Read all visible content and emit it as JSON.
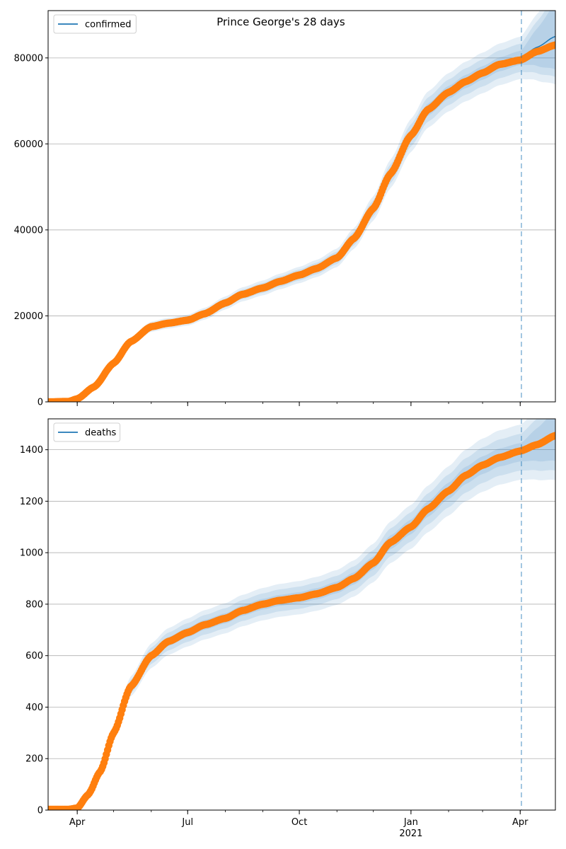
{
  "figure_title": "Prince George's 28 days",
  "chart_data": [
    {
      "type": "line",
      "title": "Prince George's 28 days",
      "xlabel": "",
      "ylabel": "",
      "x_axis": {
        "type": "date",
        "range": [
          "2020-03-08",
          "2021-04-30"
        ],
        "ticks": [
          {
            "date": "2020-04-01",
            "label": "Apr"
          },
          {
            "date": "2020-07-01",
            "label": "Jul"
          },
          {
            "date": "2020-10-01",
            "label": "Oct"
          },
          {
            "date": "2021-01-01",
            "label": "Jan",
            "sublabel": "2021"
          },
          {
            "date": "2021-04-01",
            "label": "Apr"
          }
        ]
      },
      "ylim": [
        0,
        91000
      ],
      "yticks": [
        0,
        20000,
        40000,
        60000,
        80000
      ],
      "grid": "y",
      "legend": {
        "position": "top-left",
        "entries": [
          "confirmed"
        ]
      },
      "forecast_start": "2021-04-02",
      "series": [
        {
          "name": "confirmed",
          "kind": "fitted-line",
          "color": "#1f77b4",
          "points": [
            [
              "2020-03-08",
              0
            ],
            [
              "2020-03-25",
              100
            ],
            [
              "2020-04-01",
              700
            ],
            [
              "2020-04-15",
              3500
            ],
            [
              "2020-05-01",
              9000
            ],
            [
              "2020-05-15",
              14000
            ],
            [
              "2020-06-01",
              17500
            ],
            [
              "2020-06-15",
              18300
            ],
            [
              "2020-07-01",
              19000
            ],
            [
              "2020-07-15",
              20500
            ],
            [
              "2020-08-01",
              23000
            ],
            [
              "2020-08-15",
              25000
            ],
            [
              "2020-09-01",
              26500
            ],
            [
              "2020-09-15",
              28000
            ],
            [
              "2020-10-01",
              29500
            ],
            [
              "2020-10-15",
              31000
            ],
            [
              "2020-11-01",
              33500
            ],
            [
              "2020-11-15",
              38000
            ],
            [
              "2020-12-01",
              45000
            ],
            [
              "2020-12-15",
              53000
            ],
            [
              "2021-01-01",
              62000
            ],
            [
              "2021-01-15",
              68000
            ],
            [
              "2021-02-01",
              72000
            ],
            [
              "2021-02-15",
              74500
            ],
            [
              "2021-03-01",
              76500
            ],
            [
              "2021-03-15",
              78500
            ],
            [
              "2021-04-01",
              80000
            ],
            [
              "2021-04-15",
              82500
            ],
            [
              "2021-04-30",
              85000
            ]
          ]
        },
        {
          "name": "",
          "kind": "observed",
          "color": "#ff7f0e",
          "points": [
            [
              "2020-03-08",
              0
            ],
            [
              "2020-03-25",
              100
            ],
            [
              "2020-04-01",
              700
            ],
            [
              "2020-04-15",
              3500
            ],
            [
              "2020-05-01",
              9000
            ],
            [
              "2020-05-15",
              14000
            ],
            [
              "2020-06-01",
              17500
            ],
            [
              "2020-06-15",
              18300
            ],
            [
              "2020-07-01",
              19000
            ],
            [
              "2020-07-15",
              20500
            ],
            [
              "2020-08-01",
              23000
            ],
            [
              "2020-08-15",
              25000
            ],
            [
              "2020-09-01",
              26500
            ],
            [
              "2020-09-15",
              28000
            ],
            [
              "2020-10-01",
              29500
            ],
            [
              "2020-10-15",
              31000
            ],
            [
              "2020-11-01",
              33500
            ],
            [
              "2020-11-15",
              38000
            ],
            [
              "2020-12-01",
              45000
            ],
            [
              "2020-12-15",
              53000
            ],
            [
              "2021-01-01",
              62000
            ],
            [
              "2021-01-15",
              68000
            ],
            [
              "2021-02-01",
              72000
            ],
            [
              "2021-02-15",
              74500
            ],
            [
              "2021-03-01",
              76500
            ],
            [
              "2021-03-15",
              78500
            ],
            [
              "2021-04-01",
              79500
            ],
            [
              "2021-04-15",
              81500
            ],
            [
              "2021-04-30",
              83000
            ]
          ]
        }
      ],
      "bands": {
        "color": "#1f77b4",
        "opacity": 0.12,
        "relative_halfwidths": [
          0.02,
          0.04,
          0.06
        ],
        "forecast_extra_halfwidth_per_day": 0.0025
      }
    },
    {
      "type": "line",
      "title": "",
      "xlabel": "",
      "ylabel": "",
      "x_axis": {
        "type": "date",
        "range": [
          "2020-03-08",
          "2021-04-30"
        ],
        "ticks": [
          {
            "date": "2020-04-01",
            "label": "Apr"
          },
          {
            "date": "2020-07-01",
            "label": "Jul"
          },
          {
            "date": "2020-10-01",
            "label": "Oct"
          },
          {
            "date": "2021-01-01",
            "label": "Jan",
            "sublabel": "2021"
          },
          {
            "date": "2021-04-01",
            "label": "Apr"
          }
        ]
      },
      "ylim": [
        0,
        1520
      ],
      "yticks": [
        0,
        200,
        400,
        600,
        800,
        1000,
        1200,
        1400
      ],
      "grid": "y",
      "legend": {
        "position": "top-left",
        "entries": [
          "deaths"
        ]
      },
      "forecast_start": "2021-04-02",
      "series": [
        {
          "name": "deaths",
          "kind": "fitted-line",
          "color": "#1f77b4",
          "points": [
            [
              "2020-03-08",
              3
            ],
            [
              "2020-03-25",
              3
            ],
            [
              "2020-04-01",
              8
            ],
            [
              "2020-04-10",
              60
            ],
            [
              "2020-04-20",
              150
            ],
            [
              "2020-05-01",
              300
            ],
            [
              "2020-05-15",
              480
            ],
            [
              "2020-06-01",
              600
            ],
            [
              "2020-06-15",
              655
            ],
            [
              "2020-07-01",
              690
            ],
            [
              "2020-07-15",
              720
            ],
            [
              "2020-08-01",
              745
            ],
            [
              "2020-08-15",
              775
            ],
            [
              "2020-09-01",
              800
            ],
            [
              "2020-09-15",
              815
            ],
            [
              "2020-10-01",
              825
            ],
            [
              "2020-10-15",
              840
            ],
            [
              "2020-11-01",
              865
            ],
            [
              "2020-11-15",
              900
            ],
            [
              "2020-12-01",
              960
            ],
            [
              "2020-12-15",
              1040
            ],
            [
              "2021-01-01",
              1100
            ],
            [
              "2021-01-15",
              1170
            ],
            [
              "2021-02-01",
              1240
            ],
            [
              "2021-02-15",
              1300
            ],
            [
              "2021-03-01",
              1340
            ],
            [
              "2021-03-15",
              1370
            ],
            [
              "2021-04-01",
              1390
            ],
            [
              "2021-04-15",
              1420
            ],
            [
              "2021-04-30",
              1455
            ]
          ]
        },
        {
          "name": "",
          "kind": "observed",
          "color": "#ff7f0e",
          "points": [
            [
              "2020-03-08",
              3
            ],
            [
              "2020-03-25",
              3
            ],
            [
              "2020-04-01",
              8
            ],
            [
              "2020-04-10",
              60
            ],
            [
              "2020-04-20",
              150
            ],
            [
              "2020-05-01",
              300
            ],
            [
              "2020-05-15",
              480
            ],
            [
              "2020-06-01",
              600
            ],
            [
              "2020-06-15",
              655
            ],
            [
              "2020-07-01",
              690
            ],
            [
              "2020-07-15",
              720
            ],
            [
              "2020-08-01",
              745
            ],
            [
              "2020-08-15",
              775
            ],
            [
              "2020-09-01",
              800
            ],
            [
              "2020-09-15",
              815
            ],
            [
              "2020-10-01",
              825
            ],
            [
              "2020-10-15",
              840
            ],
            [
              "2020-11-01",
              865
            ],
            [
              "2020-11-15",
              900
            ],
            [
              "2020-12-01",
              960
            ],
            [
              "2020-12-15",
              1040
            ],
            [
              "2021-01-01",
              1100
            ],
            [
              "2021-01-15",
              1170
            ],
            [
              "2021-02-01",
              1240
            ],
            [
              "2021-02-15",
              1300
            ],
            [
              "2021-03-01",
              1340
            ],
            [
              "2021-03-15",
              1370
            ],
            [
              "2021-04-01",
              1395
            ],
            [
              "2021-04-15",
              1420
            ],
            [
              "2021-04-30",
              1455
            ]
          ]
        }
      ],
      "bands": {
        "color": "#1f77b4",
        "opacity": 0.12,
        "relative_halfwidths": [
          0.025,
          0.05,
          0.075
        ],
        "forecast_extra_halfwidth_per_day": 0.0015
      }
    }
  ]
}
